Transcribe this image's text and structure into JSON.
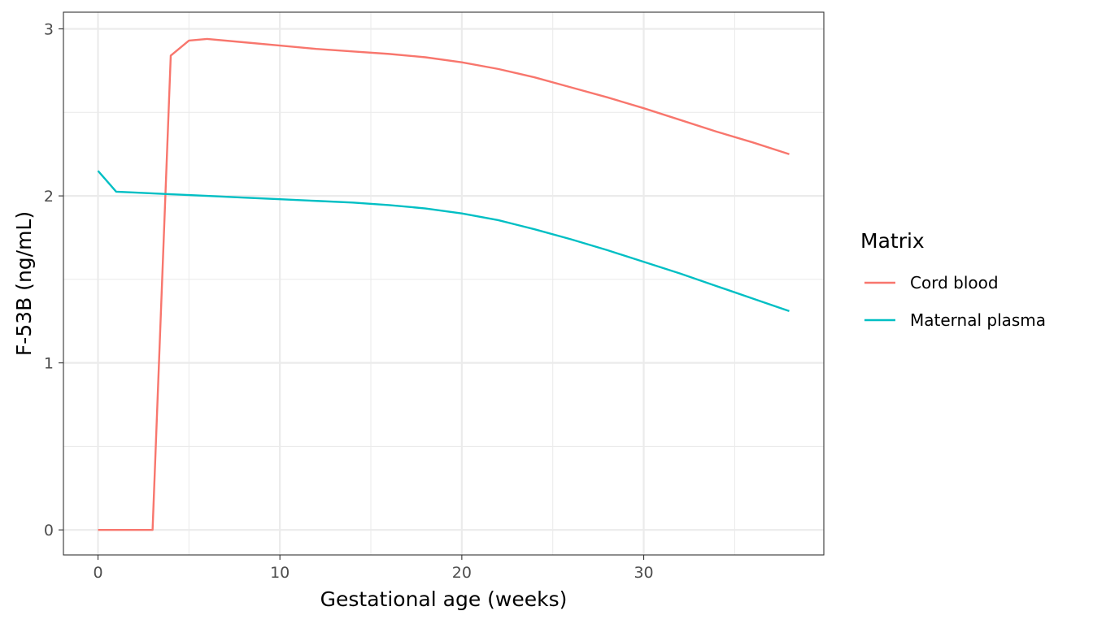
{
  "chart_data": {
    "type": "line",
    "xlabel": "Gestational age (weeks)",
    "ylabel": "F-53B (ng/mL)",
    "xlim": [
      -1.9,
      39.9
    ],
    "ylim": [
      -0.15,
      3.1
    ],
    "x_ticks": [
      0,
      10,
      20,
      30
    ],
    "x_tick_labels": [
      "0",
      "10",
      "20",
      "30"
    ],
    "x_minor_ticks": [
      5,
      15,
      25,
      35
    ],
    "y_ticks": [
      0,
      1,
      2,
      3
    ],
    "y_tick_labels": [
      "0",
      "1",
      "2",
      "3"
    ],
    "y_minor_ticks": [
      0.5,
      1.5,
      2.5
    ],
    "grid": true,
    "legend": {
      "title": "Matrix",
      "position": "right"
    },
    "series": [
      {
        "name": "Cord blood",
        "color": "#F8766D",
        "points": [
          [
            0,
            0
          ],
          [
            1,
            0
          ],
          [
            2,
            0
          ],
          [
            3,
            0
          ],
          [
            4,
            2.84
          ],
          [
            5,
            2.93
          ],
          [
            6,
            2.94
          ],
          [
            8,
            2.92
          ],
          [
            10,
            2.9
          ],
          [
            12,
            2.88
          ],
          [
            14,
            2.865
          ],
          [
            16,
            2.85
          ],
          [
            18,
            2.83
          ],
          [
            20,
            2.8
          ],
          [
            22,
            2.76
          ],
          [
            24,
            2.71
          ],
          [
            26,
            2.65
          ],
          [
            28,
            2.59
          ],
          [
            30,
            2.525
          ],
          [
            32,
            2.455
          ],
          [
            34,
            2.385
          ],
          [
            36,
            2.32
          ],
          [
            38,
            2.25
          ]
        ]
      },
      {
        "name": "Maternal plasma",
        "color": "#00BFC4",
        "points": [
          [
            0,
            2.15
          ],
          [
            1,
            2.025
          ],
          [
            2,
            2.02
          ],
          [
            4,
            2.01
          ],
          [
            6,
            2.0
          ],
          [
            8,
            1.99
          ],
          [
            10,
            1.98
          ],
          [
            12,
            1.97
          ],
          [
            14,
            1.96
          ],
          [
            16,
            1.945
          ],
          [
            18,
            1.925
          ],
          [
            20,
            1.895
          ],
          [
            22,
            1.855
          ],
          [
            24,
            1.8
          ],
          [
            26,
            1.74
          ],
          [
            28,
            1.675
          ],
          [
            30,
            1.605
          ],
          [
            32,
            1.535
          ],
          [
            34,
            1.46
          ],
          [
            36,
            1.385
          ],
          [
            38,
            1.31
          ]
        ]
      }
    ]
  }
}
